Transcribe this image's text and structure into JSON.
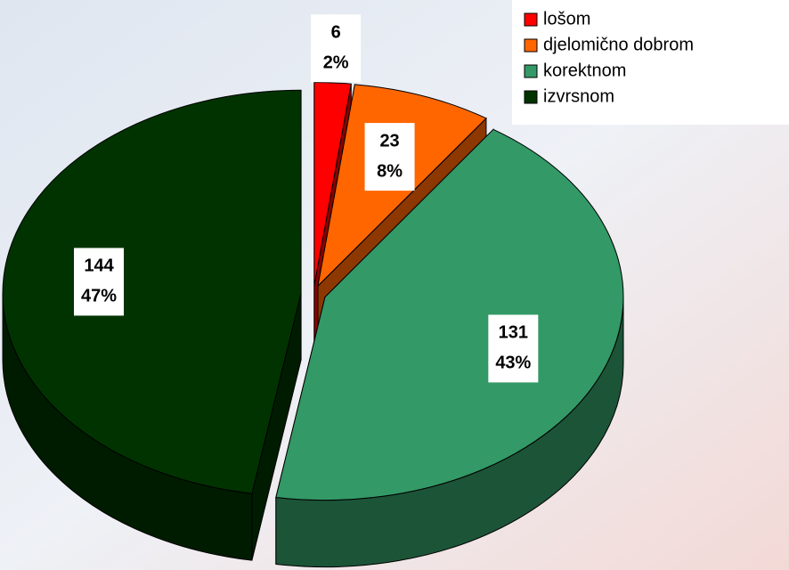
{
  "chart_data": {
    "type": "pie3d",
    "categories": [
      "lošom",
      "djelomično dobrom",
      "korektnom",
      "izvrsnom"
    ],
    "values": [
      6,
      23,
      131,
      144
    ],
    "percent_labels": [
      "2%",
      "8%",
      "43%",
      "47%"
    ],
    "colors": [
      "#ff0000",
      "#ff6600",
      "#339966",
      "#003300"
    ],
    "legend": "top-right"
  }
}
